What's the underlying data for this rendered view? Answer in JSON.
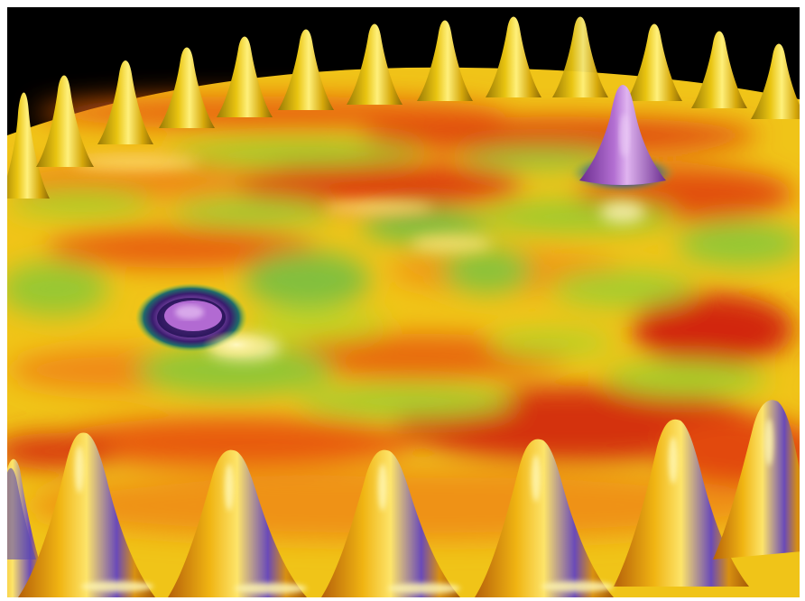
{
  "scene": {
    "kind": "3d-rendered-surface",
    "palette": {
      "background_top": "#000000",
      "border": "#ffffff",
      "surface_yellow": "#f2d21a",
      "surface_orange": "#f09a10",
      "surface_red": "#d8320c",
      "surface_green": "#9ccb2e",
      "surface_teal": "#5fb56a",
      "peak_gold": "#e9b40f",
      "peak_highlight": "#fff3a0",
      "accent_purple": "#8e45b4",
      "accent_purple_light": "#c98ee0",
      "accent_dark": "#2a1460"
    },
    "counts": {
      "back_row_peaks": 13,
      "front_row_peaks": 8,
      "purple_peaks": 1,
      "purple_dips": 1
    }
  }
}
